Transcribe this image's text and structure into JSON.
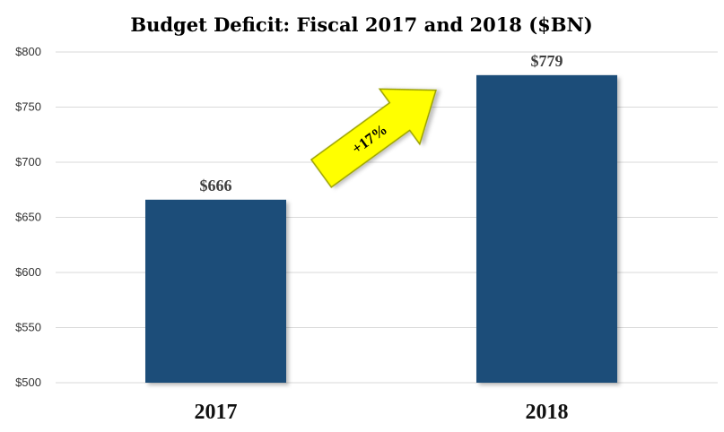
{
  "chart_data": {
    "type": "bar",
    "title": "Budget Deficit: Fiscal 2017 and 2018 ($BN)",
    "categories": [
      "2017",
      "2018"
    ],
    "values": [
      666,
      779
    ],
    "data_labels": [
      "$666",
      "$779"
    ],
    "ylim": [
      500,
      800
    ],
    "yticks": [
      500,
      550,
      600,
      650,
      700,
      750,
      800
    ],
    "ytick_labels": [
      "$500",
      "$550",
      "$600",
      "$650",
      "$700",
      "$750",
      "$800"
    ],
    "xlabel": "",
    "ylabel": "",
    "grid": true,
    "bar_color": "#1f4e79",
    "annotation": {
      "text": "+17%",
      "shape": "arrow-up-right",
      "fill_color": "#ffff00",
      "border_color": "#9aa000"
    }
  }
}
